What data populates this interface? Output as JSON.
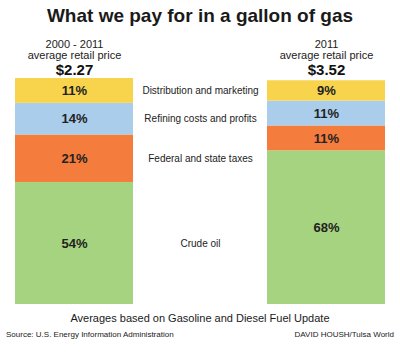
{
  "chart_data": {
    "type": "bar",
    "title": "What we pay for in a gallon of gas",
    "categories": [
      "2000 - 2011\naverage retail price",
      "2011\naverage retail price"
    ],
    "price_labels": [
      "$2.27",
      "$3.52"
    ],
    "series": [
      {
        "name": "Crude oil",
        "color": "#a6d37f",
        "values": [
          54,
          68
        ],
        "value_labels": [
          "54%",
          "68%"
        ]
      },
      {
        "name": "Federal and state taxes",
        "color": "#f47c3c",
        "values": [
          21,
          11
        ],
        "value_labels": [
          "21%",
          "11%"
        ]
      },
      {
        "name": "Refining costs and profits",
        "color": "#a9cdea",
        "values": [
          14,
          11
        ],
        "value_labels": [
          "14%",
          "11%"
        ]
      },
      {
        "name": "Distribution and marketing",
        "color": "#f7d44c",
        "values": [
          11,
          9
        ],
        "value_labels": [
          "11%",
          "9%"
        ]
      }
    ],
    "stacked": true,
    "data_labels": true,
    "tick_labels": false,
    "ylim": [
      0,
      100
    ],
    "caption": "Averages based on Gasoline and Diesel Fuel Update",
    "source": "Source: U.S. Energy Information Administration",
    "credit": "DAVID HOUSH/Tulsa World"
  }
}
